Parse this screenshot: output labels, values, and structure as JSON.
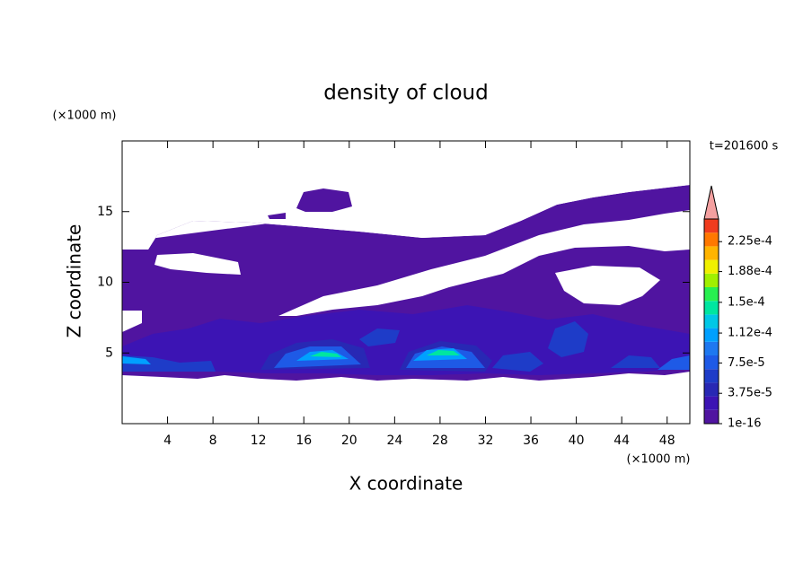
{
  "chart_data": {
    "type": "contour",
    "title": "density of cloud",
    "x_label": "X coordinate",
    "y_label": "Z coordinate",
    "x_unit": "(×1000 m)",
    "y_unit": "(×1000 m)",
    "annotation": "t=201600 s",
    "xlim": [
      0,
      50
    ],
    "ylim": [
      0,
      20
    ],
    "xticks": [
      4,
      8,
      12,
      16,
      20,
      24,
      28,
      32,
      36,
      40,
      44,
      48
    ],
    "yticks": [
      5,
      10,
      15
    ],
    "colorbar": {
      "lim": [
        1e-16,
        0.000253
      ],
      "ticks": [
        {
          "value": 1e-16,
          "label": "1e-16"
        },
        {
          "value": 3.75e-05,
          "label": "3.75e-5"
        },
        {
          "value": 7.5e-05,
          "label": "7.5e-5"
        },
        {
          "value": 0.000112,
          "label": "1.12e-4"
        },
        {
          "value": 0.00015,
          "label": "1.5e-4"
        },
        {
          "value": 0.000188,
          "label": "1.88e-4"
        },
        {
          "value": 0.000225,
          "label": "2.25e-4"
        }
      ],
      "colors": [
        "#5014a0",
        "#3c14b4",
        "#2828b4",
        "#1e3cc8",
        "#1e5ae6",
        "#1e78f0",
        "#00a0ff",
        "#00c8e6",
        "#00e6a0",
        "#28f050",
        "#a0f000",
        "#f0f000",
        "#ffb400",
        "#ff7800",
        "#f03c1e"
      ],
      "extend_color": "#f4a0a0"
    }
  }
}
